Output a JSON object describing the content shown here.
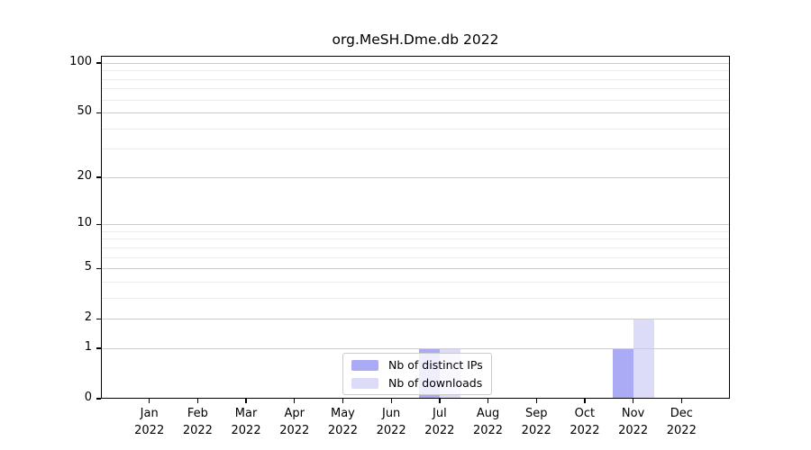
{
  "title": "org.MeSH.Dme.db 2022",
  "chart_data": {
    "type": "bar",
    "title": "org.MeSH.Dme.db 2022",
    "categories": [
      "Jan 2022",
      "Feb 2022",
      "Mar 2022",
      "Apr 2022",
      "May 2022",
      "Jun 2022",
      "Jul 2022",
      "Aug 2022",
      "Sep 2022",
      "Oct 2022",
      "Nov 2022",
      "Dec 2022"
    ],
    "series": [
      {
        "name": "Nb of distinct IPs",
        "color": "#ababf5",
        "values": [
          0,
          0,
          0,
          0,
          0,
          0,
          1,
          0,
          0,
          0,
          1,
          0
        ]
      },
      {
        "name": "Nb of downloads",
        "color": "#dcdcf8",
        "values": [
          0,
          0,
          0,
          0,
          0,
          0,
          1,
          0,
          0,
          0,
          2,
          0
        ]
      }
    ],
    "yscale": "log1p",
    "ylim": [
      0,
      110.4
    ],
    "y_major_ticks": [
      0,
      1,
      2,
      5,
      10,
      20,
      50,
      100
    ],
    "y_minor_ticks": [
      3,
      4,
      6,
      7,
      8,
      9,
      30,
      40,
      60,
      70,
      80,
      90
    ],
    "grid": true,
    "legend_position": "lower center",
    "xlabel": "",
    "ylabel": ""
  },
  "colors": {
    "major_grid": "#cccccc",
    "minor_grid": "#ebebeb",
    "axis": "#000000",
    "background": "#ffffff",
    "legend_border": "#cbcbcb"
  }
}
